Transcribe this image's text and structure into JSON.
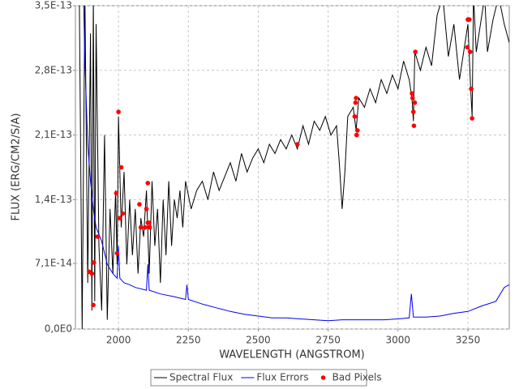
{
  "chart_data": {
    "type": "line",
    "xlabel": "WAVELENGTH (ANGSTROM)",
    "ylabel": "FLUX (ERG/CM2/S/A)",
    "xlim": [
      1846,
      3398
    ],
    "ylim": [
      0,
      3.5e-13
    ],
    "xticks": [
      2000,
      2250,
      2500,
      2750,
      3000,
      3250
    ],
    "yticks": [
      {
        "value": 0,
        "label": "0,0E0"
      },
      {
        "value": 7.1e-14,
        "label": "7,1E-14"
      },
      {
        "value": 1.4e-13,
        "label": "1,4E-13"
      },
      {
        "value": 2.1e-13,
        "label": "2,1E-13"
      },
      {
        "value": 2.8e-13,
        "label": "2,8E-13"
      },
      {
        "value": 3.5e-13,
        "label": "3,5E-13"
      }
    ],
    "grid": true,
    "legend": "bottom",
    "series": [
      {
        "name": "Spectral Flux",
        "color": "#000000",
        "mode": "line",
        "x": [
          1860,
          1870,
          1880,
          1890,
          1900,
          1905,
          1910,
          1915,
          1920,
          1930,
          1940,
          1950,
          1960,
          1970,
          1980,
          1990,
          1995,
          2000,
          2010,
          2020,
          2030,
          2040,
          2050,
          2060,
          2070,
          2080,
          2090,
          2100,
          2110,
          2120,
          2130,
          2140,
          2150,
          2160,
          2170,
          2180,
          2190,
          2200,
          2210,
          2220,
          2230,
          2240,
          2260,
          2280,
          2300,
          2320,
          2340,
          2360,
          2380,
          2400,
          2420,
          2440,
          2460,
          2480,
          2500,
          2520,
          2540,
          2560,
          2580,
          2600,
          2620,
          2640,
          2660,
          2680,
          2700,
          2720,
          2740,
          2760,
          2780,
          2790,
          2800,
          2810,
          2820,
          2840,
          2850,
          2860,
          2880,
          2900,
          2920,
          2940,
          2960,
          2980,
          3000,
          3020,
          3040,
          3050,
          3055,
          3060,
          3080,
          3100,
          3120,
          3140,
          3160,
          3180,
          3200,
          3220,
          3240,
          3250,
          3260,
          3265,
          3270,
          3280,
          3300,
          3310,
          3320,
          3340,
          3360,
          3380,
          3398
        ],
        "values": [
          3.6e-13,
          0,
          3.6e-13,
          5e-14,
          3.2e-13,
          2e-14,
          3.6e-13,
          3e-14,
          3.3e-13,
          9e-14,
          2e-14,
          2.1e-13,
          1e-14,
          1.3e-13,
          6e-14,
          1.5e-13,
          7e-14,
          2.3e-13,
          1.1e-13,
          1.7e-13,
          7e-14,
          1.4e-13,
          8e-14,
          1.3e-13,
          6e-14,
          1.2e-13,
          1e-13,
          1.5e-13,
          6e-14,
          1.6e-13,
          9e-14,
          1.3e-13,
          5e-14,
          1.4e-13,
          8e-14,
          1.6e-13,
          9e-14,
          1.4e-13,
          1.2e-13,
          1.5e-13,
          1.1e-13,
          1.6e-13,
          1.3e-13,
          1.5e-13,
          1.6e-13,
          1.4e-13,
          1.7e-13,
          1.5e-13,
          1.65e-13,
          1.8e-13,
          1.6e-13,
          1.9e-13,
          1.7e-13,
          1.85e-13,
          1.95e-13,
          1.8e-13,
          2e-13,
          1.9e-13,
          2.05e-13,
          1.95e-13,
          2.1e-13,
          1.95e-13,
          2.2e-13,
          2e-13,
          2.25e-13,
          2.15e-13,
          2.3e-13,
          2.1e-13,
          2.2e-13,
          1.8e-13,
          1.3e-13,
          1.7e-13,
          2.3e-13,
          2.4e-13,
          2.15e-13,
          2.5e-13,
          2.4e-13,
          2.6e-13,
          2.45e-13,
          2.7e-13,
          2.55e-13,
          2.75e-13,
          2.6e-13,
          2.9e-13,
          2.7e-13,
          2.5e-13,
          2.25e-13,
          3e-13,
          2.8e-13,
          3.05e-13,
          2.85e-13,
          3.4e-13,
          3.6e-13,
          2.95e-13,
          3.3e-13,
          2.7e-13,
          3.1e-13,
          3.3e-13,
          2.6e-13,
          2.3e-13,
          3.6e-13,
          3e-13,
          3.4e-13,
          3.6e-13,
          3e-13,
          3.35e-13,
          3.6e-13,
          3.3e-13,
          3.1e-13
        ]
      },
      {
        "name": "Flux Errors",
        "color": "#0000ee",
        "mode": "line",
        "x": [
          1875,
          1880,
          1890,
          1900,
          1910,
          1920,
          1940,
          1960,
          1980,
          1995,
          2000,
          2005,
          2020,
          2040,
          2060,
          2100,
          2105,
          2110,
          2150,
          2200,
          2240,
          2245,
          2250,
          2300,
          2350,
          2400,
          2450,
          2500,
          2550,
          2600,
          2650,
          2700,
          2750,
          2800,
          2850,
          2900,
          2950,
          3000,
          3040,
          3048,
          3055,
          3100,
          3150,
          3200,
          3250,
          3300,
          3350,
          3380,
          3398
        ],
        "values": [
          3.6e-13,
          2.9e-13,
          2e-13,
          1.6e-13,
          1.3e-13,
          1.1e-13,
          9.5e-14,
          7e-14,
          6e-14,
          5.5e-14,
          9e-14,
          5.5e-14,
          5e-14,
          4.8e-14,
          4.5e-14,
          4.2e-14,
          7e-14,
          4.2e-14,
          3.8e-14,
          3.5e-14,
          3.2e-14,
          4.8e-14,
          3.2e-14,
          2.7e-14,
          2.3e-14,
          1.9e-14,
          1.6e-14,
          1.4e-14,
          1.2e-14,
          1.2e-14,
          1.1e-14,
          1e-14,
          9e-15,
          1e-14,
          1e-14,
          1e-14,
          1e-14,
          1.1e-14,
          1.2e-14,
          3.8e-14,
          1.3e-14,
          1.3e-14,
          1.4e-14,
          1.7e-14,
          1.9e-14,
          2.5e-14,
          3e-14,
          4.5e-14,
          4.8e-14
        ]
      },
      {
        "name": "Bad Pixels",
        "color": "#ff0000",
        "mode": "markers",
        "x": [
          1895,
          1905,
          1910,
          1912,
          1925,
          1992,
          1995,
          2000,
          2005,
          2010,
          2015,
          2075,
          2080,
          2095,
          2100,
          2105,
          2105,
          2110,
          2112,
          2640,
          2845,
          2848,
          2850,
          2852,
          2855,
          3050,
          3052,
          3055,
          3057,
          3060,
          3062,
          3248,
          3250,
          3255,
          3258,
          3262,
          3265
        ],
        "values": [
          6.2e-14,
          6e-14,
          2.6e-14,
          7.2e-14,
          1e-13,
          1.47e-13,
          8.2e-14,
          2.35e-13,
          1.2e-13,
          1.75e-13,
          1.25e-13,
          1.35e-13,
          1.1e-13,
          1.1e-13,
          1.3e-13,
          1.58e-13,
          1.15e-13,
          1.15e-13,
          1.1e-13,
          2e-13,
          2.3e-13,
          2.45e-13,
          2.5e-13,
          2.1e-13,
          2.15e-13,
          2.55e-13,
          2.5e-13,
          2.35e-13,
          2.2e-13,
          2.45e-13,
          3e-13,
          3.05e-13,
          3.35e-13,
          3.35e-13,
          3e-13,
          2.6e-13,
          2.28e-13
        ]
      }
    ]
  }
}
